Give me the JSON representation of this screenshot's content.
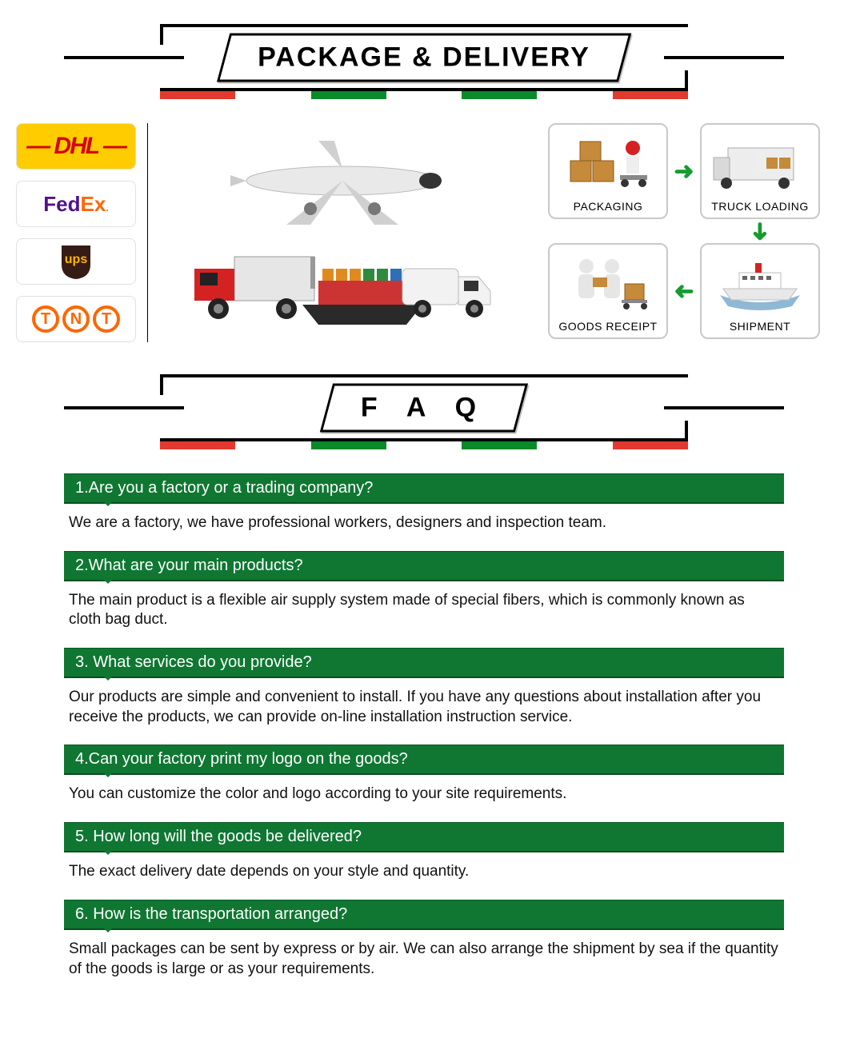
{
  "colors": {
    "green": "#0f7732",
    "arrow_green": "#159b2e",
    "black": "#000000",
    "white": "#ffffff",
    "card_border": "#c9c9c9",
    "stripe_colors": [
      "#e23a2e",
      "#ffffff",
      "#0a8a2a",
      "#ffffff",
      "#0a8a2a",
      "#ffffff",
      "#e23a2e"
    ]
  },
  "sections": {
    "delivery_title": "PACKAGE & DELIVERY",
    "faq_title": "F A Q"
  },
  "carriers": [
    {
      "name": "DHL",
      "text": "DHL",
      "bg": "#ffcc00",
      "fg": "#d40511",
      "style": "italic"
    },
    {
      "name": "FedEx",
      "text": "FedEx",
      "bg": "#ffffff",
      "fg_a": "#4d148c",
      "fg_b": "#ff6600"
    },
    {
      "name": "UPS",
      "text": "ups",
      "bg": "#ffffff",
      "shield_bg": "#351c15",
      "shield_fg": "#ffb500"
    },
    {
      "name": "TNT",
      "text": "TNT",
      "bg": "#ffffff",
      "fg": "#ff6600"
    }
  ],
  "process": [
    {
      "key": "packaging",
      "label": "PACKAGING"
    },
    {
      "key": "truck_loading",
      "label": "TRUCK LOADING"
    },
    {
      "key": "goods_receipt",
      "label": "GOODS RECEIPT"
    },
    {
      "key": "shipment",
      "label": "SHIPMENT"
    }
  ],
  "faq": [
    {
      "q": "1.Are you a factory or a trading company?",
      "a": "We are a factory, we have professional workers, designers and inspection team."
    },
    {
      "q": "2.What are your main products?",
      "a": "The main product is a flexible air supply system made of special fibers, which is commonly known as cloth bag duct."
    },
    {
      "q": "3. What services do you provide?",
      "a": "Our products are simple and convenient to install. If you have any questions about installation after you receive the products, we can provide on-line installation instruction service."
    },
    {
      "q": "4.Can your factory print my logo on the goods?",
      "a": "You can customize the color and logo according to your site requirements."
    },
    {
      "q": "5. How long will the goods be delivered?",
      "a": "The exact delivery date depends on your style and quantity."
    },
    {
      "q": "6. How is the transportation arranged?",
      "a": "Small packages can be sent by express or by air. We can also arrange the shipment by sea if the quantity of the goods is large or as your requirements."
    }
  ]
}
